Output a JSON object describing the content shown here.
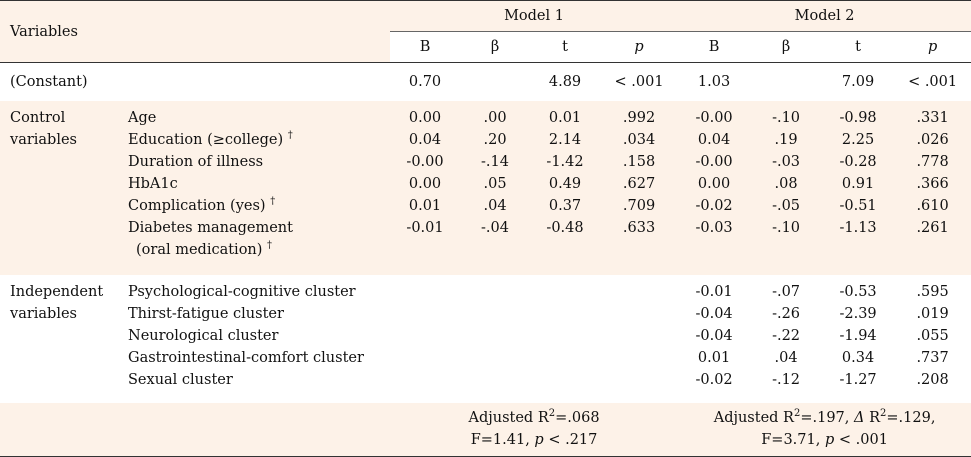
{
  "header": {
    "variables_label": "Variables",
    "model1": "Model 1",
    "model2": "Model 2",
    "cols": [
      "B",
      "β",
      "t",
      "p",
      "B",
      "β",
      "t",
      "p"
    ]
  },
  "constant": {
    "label": "(Constant)",
    "m1": [
      "0.70",
      "",
      "4.89",
      "< .001"
    ],
    "m2": [
      "1.03",
      "",
      "7.09",
      "< .001"
    ]
  },
  "control": {
    "group_line1": "Control",
    "group_line2": "variables",
    "rows": [
      {
        "label": "Age",
        "dagger": "",
        "m1": [
          "0.00",
          ".00",
          "0.01",
          ".992"
        ],
        "m2": [
          "-0.00",
          "-.10",
          "-0.98",
          ".331"
        ]
      },
      {
        "label": "Education (≥college)",
        "dagger": "†",
        "m1": [
          "0.04",
          ".20",
          "2.14",
          ".034"
        ],
        "m2": [
          "0.04",
          ".19",
          "2.25",
          ".026"
        ]
      },
      {
        "label": "Duration of illness",
        "dagger": "",
        "m1": [
          "-0.00",
          "-.14",
          "-1.42",
          ".158"
        ],
        "m2": [
          "-0.00",
          "-.03",
          "-0.28",
          ".778"
        ]
      },
      {
        "label": "HbA1c",
        "dagger": "",
        "m1": [
          "0.00",
          ".05",
          "0.49",
          ".627"
        ],
        "m2": [
          "0.00",
          ".08",
          "0.91",
          ".366"
        ]
      },
      {
        "label": "Complication (yes)",
        "dagger": "†",
        "m1": [
          "0.01",
          ".04",
          "0.37",
          ".709"
        ],
        "m2": [
          "-0.02",
          "-.05",
          "-0.51",
          ".610"
        ]
      },
      {
        "label": "Diabetes management",
        "dagger": "",
        "m1": [
          "-0.01",
          "-.04",
          "-0.48",
          ".633"
        ],
        "m2": [
          "-0.03",
          "-.10",
          "-1.13",
          ".261"
        ]
      }
    ],
    "dm_sub": "(oral medication)",
    "dm_sub_dagger": "†"
  },
  "independent": {
    "group_line1": "Independent",
    "group_line2": "variables",
    "rows": [
      {
        "label": "Psychological-cognitive cluster",
        "m2": [
          "-0.01",
          "-.07",
          "-0.53",
          ".595"
        ]
      },
      {
        "label": "Thirst-fatigue cluster",
        "m2": [
          "-0.04",
          "-.26",
          "-2.39",
          ".019"
        ]
      },
      {
        "label": "Neurological cluster",
        "m2": [
          "-0.04",
          "-.22",
          "-1.94",
          ".055"
        ]
      },
      {
        "label": "Gastrointestinal-comfort cluster",
        "m2": [
          "0.01",
          ".04",
          "0.34",
          ".737"
        ]
      },
      {
        "label": "Sexual cluster",
        "m2": [
          "-0.02",
          "-.12",
          "-1.27",
          ".208"
        ]
      }
    ]
  },
  "fit": {
    "m1_adjr2": "Adjusted R",
    "m1_adjr2_sup": "2",
    "m1_adjr2_val": "=.068",
    "m1_f": "F=1.41, ",
    "m1_p": "p",
    "m1_pval": " < .217",
    "m2_adjr2": "Adjusted R",
    "m2_adjr2_sup": "2",
    "m2_adjr2_val": "=.197, ",
    "m2_delta": "Δ",
    "m2_dr2": " R",
    "m2_dr2_sup": "2",
    "m2_dr2_val": "=.129,",
    "m2_f": "F=3.71, ",
    "m2_p": "p",
    "m2_pval": " < .001"
  }
}
